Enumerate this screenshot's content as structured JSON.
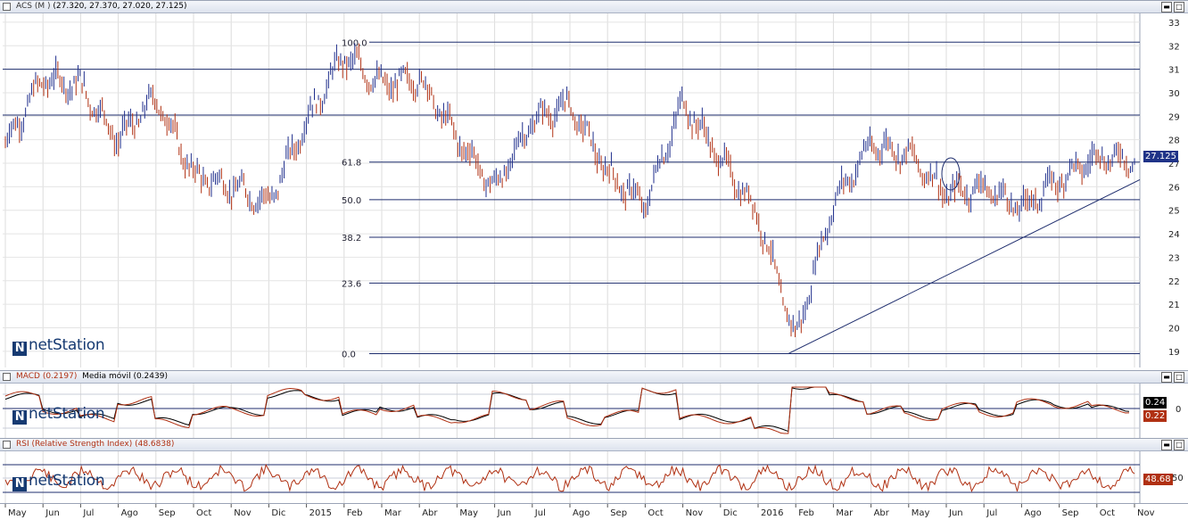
{
  "main_pane": {
    "title": "ACS (M )",
    "ohlc": "(27.320, 27.370, 27.020, 27.125)",
    "price_badge": "27.125",
    "y_ticks": [
      "33",
      "32",
      "31",
      "30",
      "29",
      "28",
      "27",
      "26",
      "25",
      "24",
      "23",
      "22",
      "21",
      "20",
      "19"
    ],
    "fib_levels": [
      "100.0",
      "61.8",
      "50.0",
      "38.2",
      "23.6",
      "0.0"
    ],
    "fib_prices": [
      32.15,
      27.05,
      25.45,
      23.85,
      21.9,
      18.9
    ],
    "h_lines": [
      31.0,
      29.05
    ],
    "trendline": {
      "from": [
        "2016-Feb",
        18.9
      ],
      "to": [
        "2016-Nov",
        26.3
      ]
    },
    "circle_note": "ellipse around Jun 2016 gap",
    "logo": "netStation"
  },
  "macd_pane": {
    "title": "MACD (0.2197)",
    "subtitle": "Media móvil (0.2439)",
    "y_ticks": [
      "0"
    ],
    "badge_signal": "0.24",
    "badge_macd": "0.22",
    "logo": "netStation"
  },
  "rsi_pane": {
    "title": "RSI (Relative Strength Index) (48.6838)",
    "y_ticks": [
      "50"
    ],
    "badge": "48.68",
    "logo": "netStation"
  },
  "x_axis": {
    "labels": [
      "May",
      "Jun",
      "Jul",
      "Ago",
      "Sep",
      "Oct",
      "Nov",
      "Dic",
      "2015",
      "Feb",
      "Mar",
      "Abr",
      "May",
      "Jun",
      "Jul",
      "Ago",
      "Sep",
      "Oct",
      "Nov",
      "Dic",
      "2016",
      "Feb",
      "Mar",
      "Abr",
      "May",
      "Jun",
      "Jul",
      "Ago",
      "Sep",
      "Oct",
      "Nov"
    ]
  },
  "chart_data": {
    "type": "line",
    "title": "ACS (M )",
    "ylim": [
      18.5,
      33.3
    ],
    "x": [
      "2014-05",
      "2014-06",
      "2014-07",
      "2014-08",
      "2014-09",
      "2014-10",
      "2014-11",
      "2014-12",
      "2015-01",
      "2015-02",
      "2015-03",
      "2015-04",
      "2015-05",
      "2015-06",
      "2015-07",
      "2015-08",
      "2015-09",
      "2015-10",
      "2015-11",
      "2015-12",
      "2016-01",
      "2016-02",
      "2016-03",
      "2016-04",
      "2016-05",
      "2016-06",
      "2016-07",
      "2016-08",
      "2016-09",
      "2016-10",
      "2016-11"
    ],
    "series": [
      {
        "values": [
          27.8,
          30.6,
          30.3,
          28.0,
          29.8,
          26.5,
          26.0,
          25.3,
          28.8,
          31.6,
          30.3,
          30.6,
          28.1,
          25.9,
          28.8,
          29.5,
          26.6,
          25.2,
          29.6,
          27.2,
          24.8,
          19.5,
          25.3,
          27.8,
          27.4,
          25.7,
          26.0,
          25.1,
          26.3,
          27.3,
          27.125
        ]
      }
    ],
    "colors": {
      "up": "#1f2e8c",
      "down": "#b03012",
      "macd_line": "#b03012",
      "signal_line": "#000000",
      "rsi_line": "#b03012",
      "levels": "#1f2e6e"
    }
  }
}
